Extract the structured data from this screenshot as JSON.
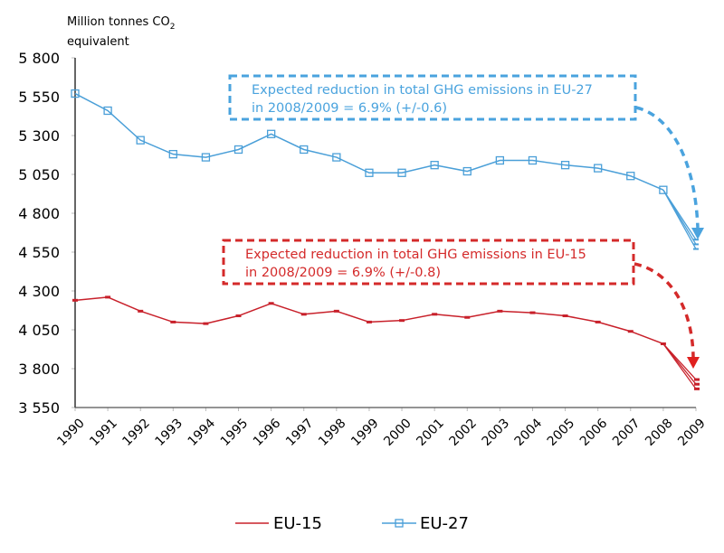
{
  "chart_data": {
    "type": "line",
    "title": "",
    "ylabel": "Million tonnes CO2 equivalent",
    "ylabel_lines": [
      "Million tonnes CO",
      "2",
      "equivalent"
    ],
    "xlabel": "",
    "ylim": [
      3550,
      5800
    ],
    "yticks": [
      3550,
      3800,
      4050,
      4300,
      4550,
      4800,
      5050,
      5300,
      5550,
      5800
    ],
    "ytick_labels": [
      "3 550",
      "3 800",
      "4 050",
      "4 300",
      "4 550",
      "4 800",
      "5 050",
      "5 300",
      "5 550",
      "5 800"
    ],
    "categories": [
      "1990",
      "1991",
      "1992",
      "1993",
      "1994",
      "1995",
      "1996",
      "1997",
      "1998",
      "1999",
      "2000",
      "2001",
      "2002",
      "2003",
      "2004",
      "2005",
      "2006",
      "2007",
      "2008",
      "2009"
    ],
    "grid": false,
    "legend_position": "bottom",
    "series": [
      {
        "name": "EU-15",
        "color": "#c8202a",
        "marker": "dash",
        "values": [
          4240,
          4260,
          4170,
          4100,
          4090,
          4140,
          4220,
          4150,
          4170,
          4100,
          4110,
          4150,
          4130,
          4170,
          4160,
          4140,
          4100,
          4040,
          3960
        ],
        "projection_2009": [
          3730,
          3700,
          3670
        ]
      },
      {
        "name": "EU-27",
        "color": "#4a9fd8",
        "marker": "square",
        "values": [
          5570,
          5460,
          5270,
          5180,
          5160,
          5210,
          5310,
          5210,
          5160,
          5060,
          5060,
          5110,
          5070,
          5140,
          5140,
          5110,
          5090,
          5040,
          4950
        ],
        "projection_2009": [
          4630,
          4600,
          4570
        ]
      }
    ],
    "annotations": [
      {
        "series": "EU-27",
        "color": "#4aa3de",
        "lines": [
          "Expected reduction in total GHG emissions in EU-27",
          "in 2008/2009 = 6.9% (+/-0.6)"
        ]
      },
      {
        "series": "EU-15",
        "color": "#d42a2a",
        "lines": [
          "Expected reduction in total GHG emissions in EU-15",
          "in 2008/2009 = 6.9% (+/-0.8)"
        ]
      }
    ]
  }
}
